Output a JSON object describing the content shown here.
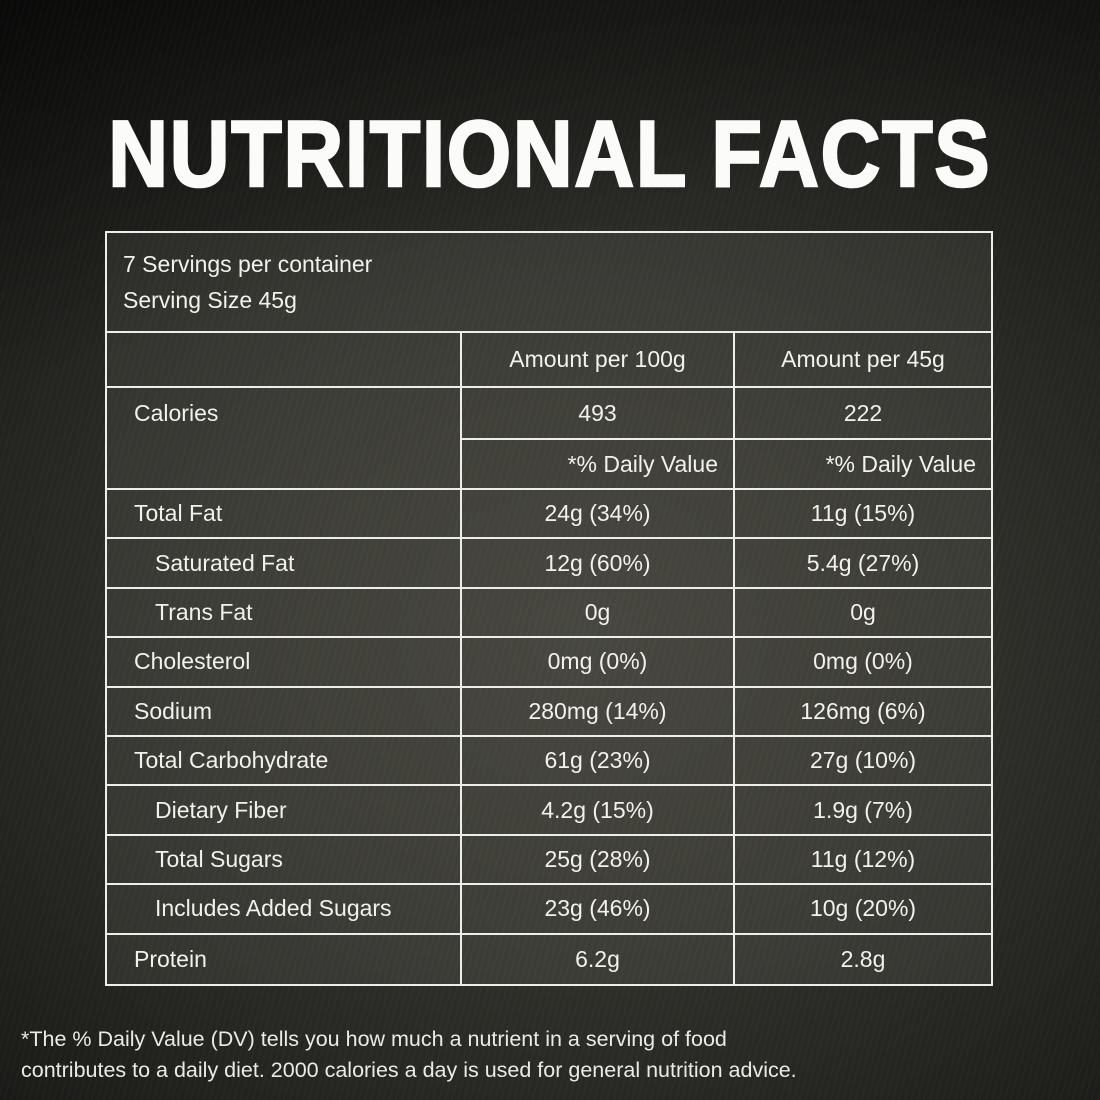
{
  "title": "NUTRITIONAL FACTS",
  "label": {
    "servings_per_container": "7 Servings per container",
    "serving_size": "Serving Size 45g",
    "column_headers": {
      "per100g": "Amount per 100g",
      "per45g": "Amount per 45g"
    },
    "calories": {
      "label": "Calories",
      "per100g": "493",
      "per45g": "222"
    },
    "daily_value_header": "*% Daily Value",
    "rows": [
      {
        "label": "Total Fat",
        "indent": false,
        "per100g": "24g (34%)",
        "per45g": "11g (15%)"
      },
      {
        "label": "Saturated Fat",
        "indent": true,
        "per100g": "12g (60%)",
        "per45g": "5.4g (27%)"
      },
      {
        "label": "Trans Fat",
        "indent": true,
        "per100g": "0g",
        "per45g": "0g"
      },
      {
        "label": "Cholesterol",
        "indent": false,
        "per100g": "0mg (0%)",
        "per45g": "0mg (0%)"
      },
      {
        "label": "Sodium",
        "indent": false,
        "per100g": "280mg (14%)",
        "per45g": "126mg (6%)"
      },
      {
        "label": "Total Carbohydrate",
        "indent": false,
        "per100g": "61g (23%)",
        "per45g": "27g (10%)"
      },
      {
        "label": "Dietary Fiber",
        "indent": true,
        "per100g": "4.2g (15%)",
        "per45g": "1.9g (7%)"
      },
      {
        "label": "Total Sugars",
        "indent": true,
        "per100g": "25g (28%)",
        "per45g": "11g (12%)"
      },
      {
        "label": "Includes Added Sugars",
        "indent": true,
        "per100g": "23g (46%)",
        "per45g": "10g (20%)"
      },
      {
        "label": "Protein",
        "indent": false,
        "per100g": "6.2g",
        "per45g": "2.8g"
      }
    ],
    "footnote_lines": [
      "*The % Daily Value (DV) tells you how much a nutrient in a serving of food",
      "contributes to a daily diet. 2000 calories a day is used for general nutrition advice."
    ]
  },
  "colors": {
    "background": "#2e2e29",
    "table_line": "#edeee9",
    "text": "#f2f1ec"
  }
}
